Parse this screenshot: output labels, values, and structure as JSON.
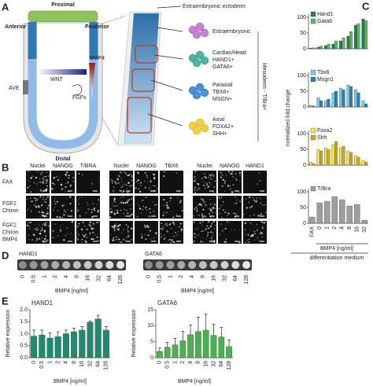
{
  "panel_labels": [
    "A",
    "B",
    "C",
    "D",
    "E"
  ],
  "diagram": {
    "proximal": "Proximal",
    "anterior": "Anterior",
    "posterior": "Posterior",
    "distal": "Distal",
    "ave": "AVE",
    "wnt": "WNT",
    "bmp4": "BMP4",
    "fgfs": "FGFs",
    "extraembryonic_ectoderm": "Extraembryonic ectoderm",
    "extraembryonic": "Extraembryonic",
    "cardiac": [
      "Cardiac/Head",
      "HAND1+",
      "GATA6+"
    ],
    "paraxial": [
      "Paraxial",
      "TBX6+",
      "MSGN+"
    ],
    "axial": [
      "Axial",
      "FOXA2+",
      "SHH+"
    ],
    "mesoderm": "Mesoderm - T/Bra+"
  },
  "microscopy": {
    "groups": [
      [
        "Nuclei",
        "NANOG",
        "T/BRA"
      ],
      [
        "Nuclei",
        "NANOG",
        "TBX6"
      ],
      [
        "Nuclei",
        "NANOG",
        "HAND1"
      ]
    ],
    "rows": [
      [
        "FAX"
      ],
      [
        "FGF2",
        "Chiron"
      ],
      [
        "FGF2",
        "Chiron",
        "BMP4"
      ]
    ]
  },
  "gel": {
    "blots": [
      {
        "label": "HAND1",
        "categories": [
          "0",
          "0.5",
          "1",
          "2",
          "4",
          "8",
          "16",
          "32",
          "64",
          "128"
        ],
        "xlabel": "BMP4 [ng/ml]"
      },
      {
        "label": "GATA6",
        "categories": [
          "0",
          "0.5",
          "1",
          "2",
          "4",
          "8",
          "16",
          "32",
          "64",
          "128"
        ],
        "xlabel": "BMP4 [ng/ml]"
      }
    ]
  },
  "chart_data": [
    {
      "type": "bar",
      "ylabel": "normalized fold change",
      "ylim": [
        0,
        110
      ],
      "yticks": [
        0,
        50,
        100
      ],
      "series": [
        {
          "name": "Hand1",
          "color": "#2b7a55",
          "values": [
            2,
            5,
            10,
            15,
            25,
            40,
            75,
            95
          ]
        },
        {
          "name": "Gata6",
          "color": "#5cb85c",
          "values": [
            3,
            8,
            15,
            25,
            35,
            55,
            80,
            90
          ]
        }
      ]
    },
    {
      "type": "bar",
      "ylim": [
        0,
        110
      ],
      "yticks": [
        0,
        50,
        100
      ],
      "series": [
        {
          "name": "Tbx6",
          "color": "#7ec8e3",
          "values": [
            5,
            30,
            20,
            45,
            60,
            70,
            55,
            20
          ]
        },
        {
          "name": "Msgn1",
          "color": "#2a7fb8",
          "values": [
            3,
            20,
            25,
            50,
            55,
            65,
            45,
            10
          ]
        }
      ]
    },
    {
      "type": "bar",
      "ylim": [
        0,
        110
      ],
      "yticks": [
        0,
        50,
        100
      ],
      "series": [
        {
          "name": "Foxa2",
          "color": "#f0e04a",
          "values": [
            10,
            50,
            55,
            65,
            55,
            45,
            30,
            15
          ]
        },
        {
          "name": "Shh",
          "color": "#c8a82a",
          "values": [
            5,
            45,
            50,
            75,
            60,
            40,
            25,
            10
          ]
        }
      ]
    },
    {
      "type": "bar",
      "ylim": [
        0,
        110
      ],
      "yticks": [
        0,
        50,
        100
      ],
      "categories": [
        "FAX",
        "0",
        "1",
        "2",
        "4",
        "8",
        "16",
        "32"
      ],
      "xlabel": "BMP4 [ng/ml]",
      "x_group_label": "differentiation medium",
      "series": [
        {
          "name": "T/Bra",
          "color": "#9e9e9e",
          "values": [
            20,
            65,
            70,
            85,
            75,
            55,
            60,
            10
          ]
        }
      ]
    },
    {
      "type": "bar",
      "title": "HAND1",
      "ylabel": "Relative expression",
      "xlabel": "BMP4 [ng/ml]",
      "color": "#1e8a6e",
      "categories": [
        "0",
        "0.5",
        "1",
        "2",
        "4",
        "8",
        "16",
        "32",
        "64",
        "128"
      ],
      "values": [
        0.9,
        0.95,
        0.82,
        0.88,
        1.0,
        1.08,
        1.15,
        1.48,
        1.62,
        1.15
      ],
      "errors": [
        0.25,
        0.2,
        0.22,
        0.2,
        0.15,
        0.15,
        0.15,
        0.05,
        0.15,
        0.15
      ],
      "ylim": [
        0,
        2
      ],
      "yticks": [
        {
          "value": 0,
          "label": "0.0"
        },
        {
          "value": 0.5,
          "label": "0.5"
        },
        {
          "value": 1,
          "label": "1.0"
        },
        {
          "value": 1.5,
          "label": "1.5"
        },
        {
          "value": 2,
          "label": "2.0"
        }
      ]
    },
    {
      "type": "bar",
      "title": "GATA6",
      "ylabel": "Relative expression",
      "xlabel": "BMP4 [ng/ml]",
      "color": "#4caf50",
      "categories": [
        "0",
        "0.5",
        "1",
        "2",
        "4",
        "8",
        "16",
        "32",
        "64",
        "128"
      ],
      "values": [
        2,
        3.3,
        4,
        5.3,
        7.2,
        8.2,
        8.6,
        7,
        6.5,
        3.5
      ],
      "errors": [
        1,
        1.5,
        2,
        3,
        3,
        4.5,
        5,
        3.5,
        3,
        2
      ],
      "ylim": [
        0,
        15
      ],
      "yticks": [
        0,
        5,
        10,
        15
      ]
    }
  ]
}
